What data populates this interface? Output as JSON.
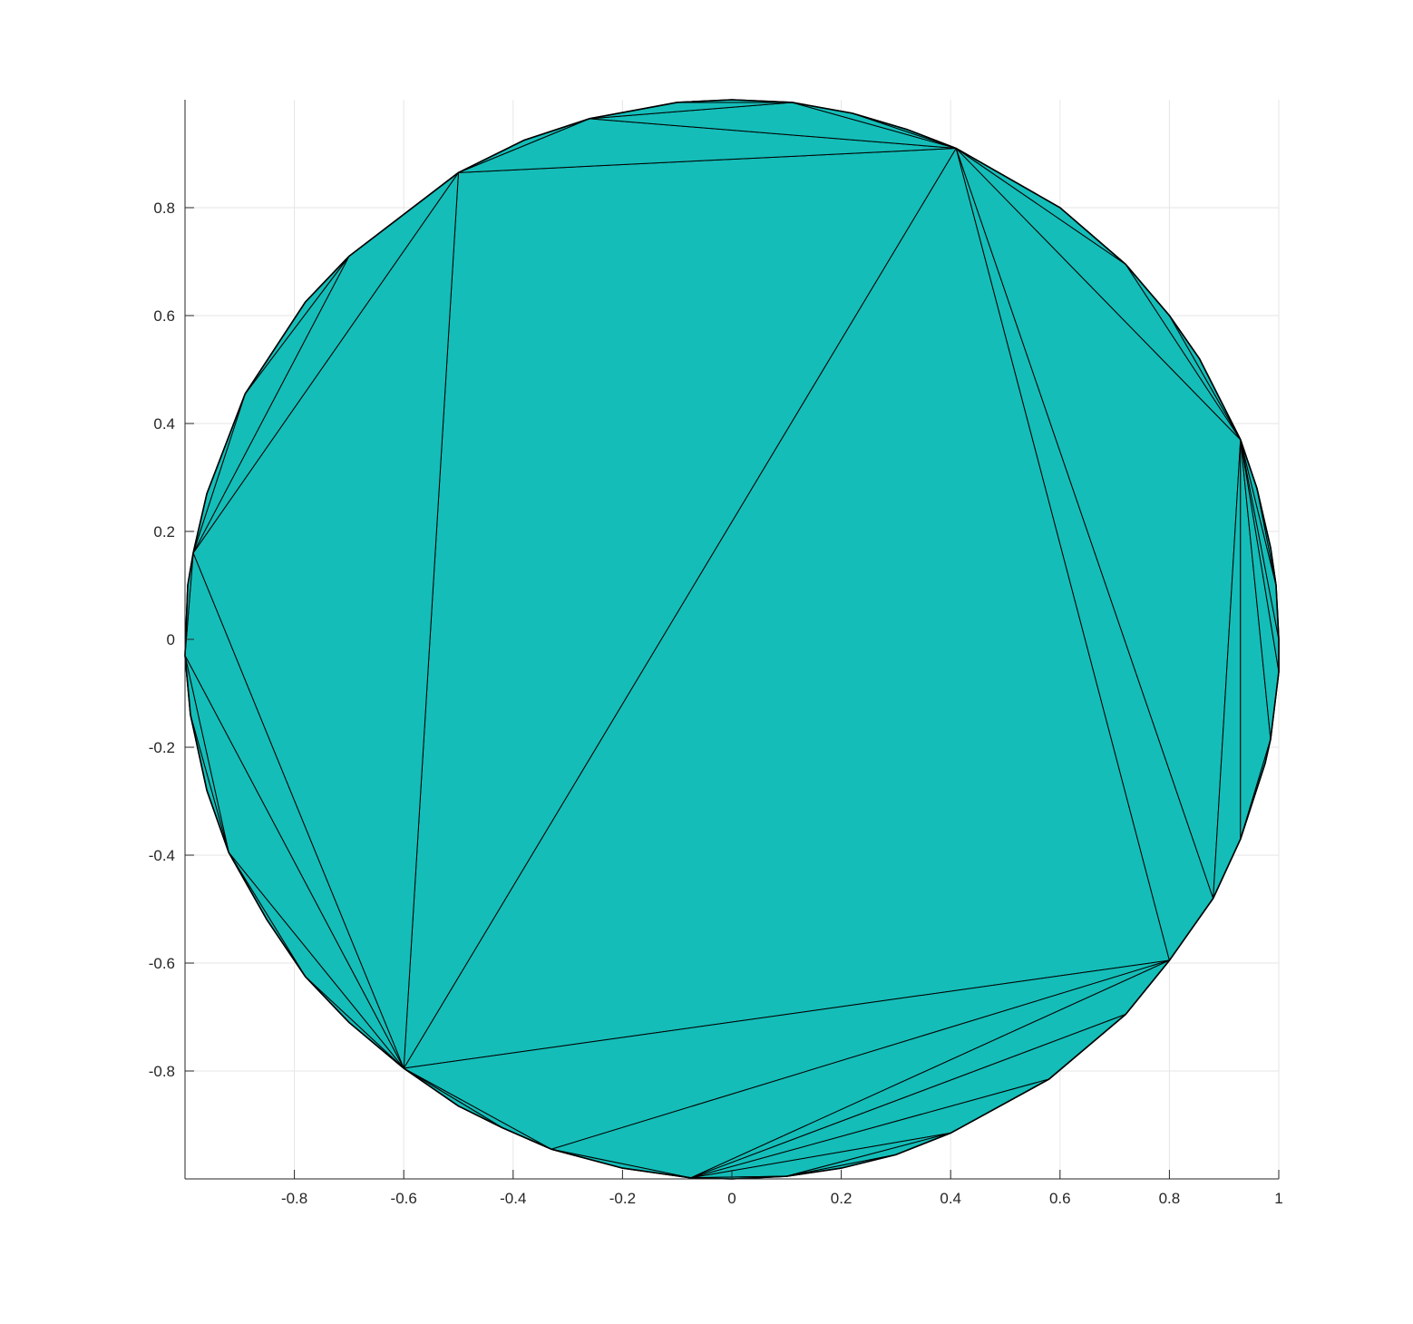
{
  "chart_data": {
    "type": "triangulation",
    "title": "",
    "xlabel": "",
    "ylabel": "",
    "xlim": [
      -1,
      1
    ],
    "ylim": [
      -1,
      1
    ],
    "grid": true,
    "face_color": "#14BDB8",
    "edge_color": "#000000",
    "xticks": [
      {
        "value": -0.8,
        "label": "-0.8"
      },
      {
        "value": -0.6,
        "label": "-0.6"
      },
      {
        "value": -0.4,
        "label": "-0.4"
      },
      {
        "value": -0.2,
        "label": "-0.2"
      },
      {
        "value": 0,
        "label": "0"
      },
      {
        "value": 0.2,
        "label": "0.2"
      },
      {
        "value": 0.4,
        "label": "0.4"
      },
      {
        "value": 0.6,
        "label": "0.6"
      },
      {
        "value": 0.8,
        "label": "0.8"
      },
      {
        "value": 1,
        "label": "1"
      }
    ],
    "yticks": [
      {
        "value": 0.8,
        "label": "0.8"
      },
      {
        "value": 0.6,
        "label": "0.6"
      },
      {
        "value": 0.4,
        "label": "0.4"
      },
      {
        "value": 0.2,
        "label": "0.2"
      },
      {
        "value": 0,
        "label": "0"
      },
      {
        "value": -0.2,
        "label": "-0.2"
      },
      {
        "value": -0.4,
        "label": "-0.4"
      },
      {
        "value": -0.6,
        "label": "-0.6"
      },
      {
        "value": -0.8,
        "label": "-0.8"
      }
    ],
    "boundary_vertices": [
      [
        1.0,
        -0.06
      ],
      [
        0.985,
        -0.185
      ],
      [
        0.975,
        -0.23
      ],
      [
        0.93,
        -0.37
      ],
      [
        0.88,
        -0.48
      ],
      [
        0.8,
        -0.595
      ],
      [
        0.72,
        -0.695
      ],
      [
        0.58,
        -0.815
      ],
      [
        0.4,
        -0.915
      ],
      [
        0.3,
        -0.955
      ],
      [
        0.2,
        -0.98
      ],
      [
        0.1,
        -0.995
      ],
      [
        0.0,
        -1.0
      ],
      [
        -0.075,
        -0.998
      ],
      [
        -0.2,
        -0.98
      ],
      [
        -0.33,
        -0.945
      ],
      [
        -0.42,
        -0.905
      ],
      [
        -0.5,
        -0.865
      ],
      [
        -0.6,
        -0.795
      ],
      [
        -0.7,
        -0.71
      ],
      [
        -0.78,
        -0.625
      ],
      [
        -0.85,
        -0.52
      ],
      [
        -0.92,
        -0.395
      ],
      [
        -0.96,
        -0.28
      ],
      [
        -0.99,
        -0.14
      ],
      [
        -1.0,
        -0.03
      ],
      [
        -0.995,
        0.1
      ],
      [
        -0.985,
        0.16
      ],
      [
        -0.96,
        0.27
      ],
      [
        -0.89,
        0.455
      ],
      [
        -0.78,
        0.625
      ],
      [
        -0.7,
        0.71
      ],
      [
        -0.5,
        0.865
      ],
      [
        -0.38,
        0.925
      ],
      [
        -0.26,
        0.965
      ],
      [
        -0.1,
        0.995
      ],
      [
        0.0,
        1.0
      ],
      [
        0.11,
        0.995
      ],
      [
        0.22,
        0.975
      ],
      [
        0.32,
        0.945
      ],
      [
        0.41,
        0.91
      ],
      [
        0.6,
        0.8
      ],
      [
        0.72,
        0.695
      ],
      [
        0.8,
        0.6
      ],
      [
        0.855,
        0.52
      ],
      [
        0.93,
        0.37
      ],
      [
        0.96,
        0.28
      ],
      [
        0.985,
        0.17
      ],
      [
        0.995,
        0.1
      ],
      [
        1.0,
        0.0
      ]
    ],
    "triangles": [
      [
        [
          -0.6,
          -0.795
        ],
        [
          0.41,
          0.91
        ],
        [
          0.8,
          -0.595
        ]
      ],
      [
        [
          -0.6,
          -0.795
        ],
        [
          -0.5,
          0.865
        ],
        [
          0.41,
          0.91
        ]
      ],
      [
        [
          -0.6,
          -0.795
        ],
        [
          -0.985,
          0.16
        ],
        [
          -0.5,
          0.865
        ]
      ],
      [
        [
          -0.985,
          0.16
        ],
        [
          -0.7,
          0.71
        ],
        [
          -0.5,
          0.865
        ]
      ],
      [
        [
          -0.985,
          0.16
        ],
        [
          -0.89,
          0.455
        ],
        [
          -0.7,
          0.71
        ]
      ],
      [
        [
          -0.89,
          0.455
        ],
        [
          -0.78,
          0.625
        ],
        [
          -0.7,
          0.71
        ]
      ],
      [
        [
          -0.985,
          0.16
        ],
        [
          -0.96,
          0.27
        ],
        [
          -0.89,
          0.455
        ]
      ],
      [
        [
          -0.6,
          -0.795
        ],
        [
          -1.0,
          -0.03
        ],
        [
          -0.985,
          0.16
        ]
      ],
      [
        [
          -1.0,
          -0.03
        ],
        [
          -0.995,
          0.1
        ],
        [
          -0.985,
          0.16
        ]
      ],
      [
        [
          -0.6,
          -0.795
        ],
        [
          -0.92,
          -0.395
        ],
        [
          -1.0,
          -0.03
        ]
      ],
      [
        [
          -0.92,
          -0.395
        ],
        [
          -0.99,
          -0.14
        ],
        [
          -1.0,
          -0.03
        ]
      ],
      [
        [
          -0.92,
          -0.395
        ],
        [
          -0.96,
          -0.28
        ],
        [
          -0.99,
          -0.14
        ]
      ],
      [
        [
          -0.6,
          -0.795
        ],
        [
          -0.78,
          -0.625
        ],
        [
          -0.92,
          -0.395
        ]
      ],
      [
        [
          -0.78,
          -0.625
        ],
        [
          -0.85,
          -0.52
        ],
        [
          -0.92,
          -0.395
        ]
      ],
      [
        [
          -0.6,
          -0.795
        ],
        [
          -0.7,
          -0.71
        ],
        [
          -0.78,
          -0.625
        ]
      ],
      [
        [
          -0.5,
          0.865
        ],
        [
          -0.26,
          0.965
        ],
        [
          0.41,
          0.91
        ]
      ],
      [
        [
          -0.5,
          0.865
        ],
        [
          -0.38,
          0.925
        ],
        [
          -0.26,
          0.965
        ]
      ],
      [
        [
          -0.26,
          0.965
        ],
        [
          0.11,
          0.995
        ],
        [
          0.41,
          0.91
        ]
      ],
      [
        [
          -0.26,
          0.965
        ],
        [
          -0.1,
          0.995
        ],
        [
          0.11,
          0.995
        ]
      ],
      [
        [
          -0.1,
          0.995
        ],
        [
          0.0,
          1.0
        ],
        [
          0.11,
          0.995
        ]
      ],
      [
        [
          0.11,
          0.995
        ],
        [
          0.22,
          0.975
        ],
        [
          0.41,
          0.91
        ]
      ],
      [
        [
          0.22,
          0.975
        ],
        [
          0.32,
          0.945
        ],
        [
          0.41,
          0.91
        ]
      ],
      [
        [
          0.41,
          0.91
        ],
        [
          0.88,
          -0.48
        ],
        [
          0.8,
          -0.595
        ]
      ],
      [
        [
          0.41,
          0.91
        ],
        [
          0.93,
          0.37
        ],
        [
          0.88,
          -0.48
        ]
      ],
      [
        [
          0.41,
          0.91
        ],
        [
          0.72,
          0.695
        ],
        [
          0.93,
          0.37
        ]
      ],
      [
        [
          0.41,
          0.91
        ],
        [
          0.6,
          0.8
        ],
        [
          0.72,
          0.695
        ]
      ],
      [
        [
          0.72,
          0.695
        ],
        [
          0.8,
          0.6
        ],
        [
          0.93,
          0.37
        ]
      ],
      [
        [
          0.8,
          0.6
        ],
        [
          0.855,
          0.52
        ],
        [
          0.93,
          0.37
        ]
      ],
      [
        [
          0.93,
          0.37
        ],
        [
          0.93,
          -0.37
        ],
        [
          0.88,
          -0.48
        ]
      ],
      [
        [
          0.93,
          0.37
        ],
        [
          0.985,
          -0.185
        ],
        [
          0.93,
          -0.37
        ]
      ],
      [
        [
          0.93,
          0.37
        ],
        [
          1.0,
          -0.06
        ],
        [
          0.985,
          -0.185
        ]
      ],
      [
        [
          0.93,
          0.37
        ],
        [
          1.0,
          0.0
        ],
        [
          1.0,
          -0.06
        ]
      ],
      [
        [
          0.93,
          0.37
        ],
        [
          0.995,
          0.1
        ],
        [
          1.0,
          0.0
        ]
      ],
      [
        [
          0.93,
          0.37
        ],
        [
          0.96,
          0.28
        ],
        [
          0.995,
          0.1
        ]
      ],
      [
        [
          0.96,
          0.28
        ],
        [
          0.985,
          0.17
        ],
        [
          0.995,
          0.1
        ]
      ],
      [
        [
          0.985,
          -0.185
        ],
        [
          0.975,
          -0.23
        ],
        [
          0.93,
          -0.37
        ]
      ],
      [
        [
          -0.6,
          -0.795
        ],
        [
          0.8,
          -0.595
        ],
        [
          -0.33,
          -0.945
        ]
      ],
      [
        [
          -0.6,
          -0.795
        ],
        [
          -0.33,
          -0.945
        ],
        [
          -0.42,
          -0.905
        ]
      ],
      [
        [
          -0.6,
          -0.795
        ],
        [
          -0.42,
          -0.905
        ],
        [
          -0.5,
          -0.865
        ]
      ],
      [
        [
          -0.33,
          -0.945
        ],
        [
          0.8,
          -0.595
        ],
        [
          -0.075,
          -0.998
        ]
      ],
      [
        [
          -0.33,
          -0.945
        ],
        [
          -0.075,
          -0.998
        ],
        [
          -0.2,
          -0.98
        ]
      ],
      [
        [
          -0.075,
          -0.998
        ],
        [
          0.8,
          -0.595
        ],
        [
          0.72,
          -0.695
        ]
      ],
      [
        [
          -0.075,
          -0.998
        ],
        [
          0.72,
          -0.695
        ],
        [
          0.58,
          -0.815
        ]
      ],
      [
        [
          -0.075,
          -0.998
        ],
        [
          0.58,
          -0.815
        ],
        [
          0.4,
          -0.915
        ]
      ],
      [
        [
          -0.075,
          -0.998
        ],
        [
          0.4,
          -0.915
        ],
        [
          0.1,
          -0.995
        ]
      ],
      [
        [
          -0.075,
          -0.998
        ],
        [
          0.1,
          -0.995
        ],
        [
          0.0,
          -1.0
        ]
      ],
      [
        [
          0.1,
          -0.995
        ],
        [
          0.4,
          -0.915
        ],
        [
          0.3,
          -0.955
        ]
      ],
      [
        [
          0.1,
          -0.995
        ],
        [
          0.3,
          -0.955
        ],
        [
          0.2,
          -0.98
        ]
      ]
    ]
  }
}
